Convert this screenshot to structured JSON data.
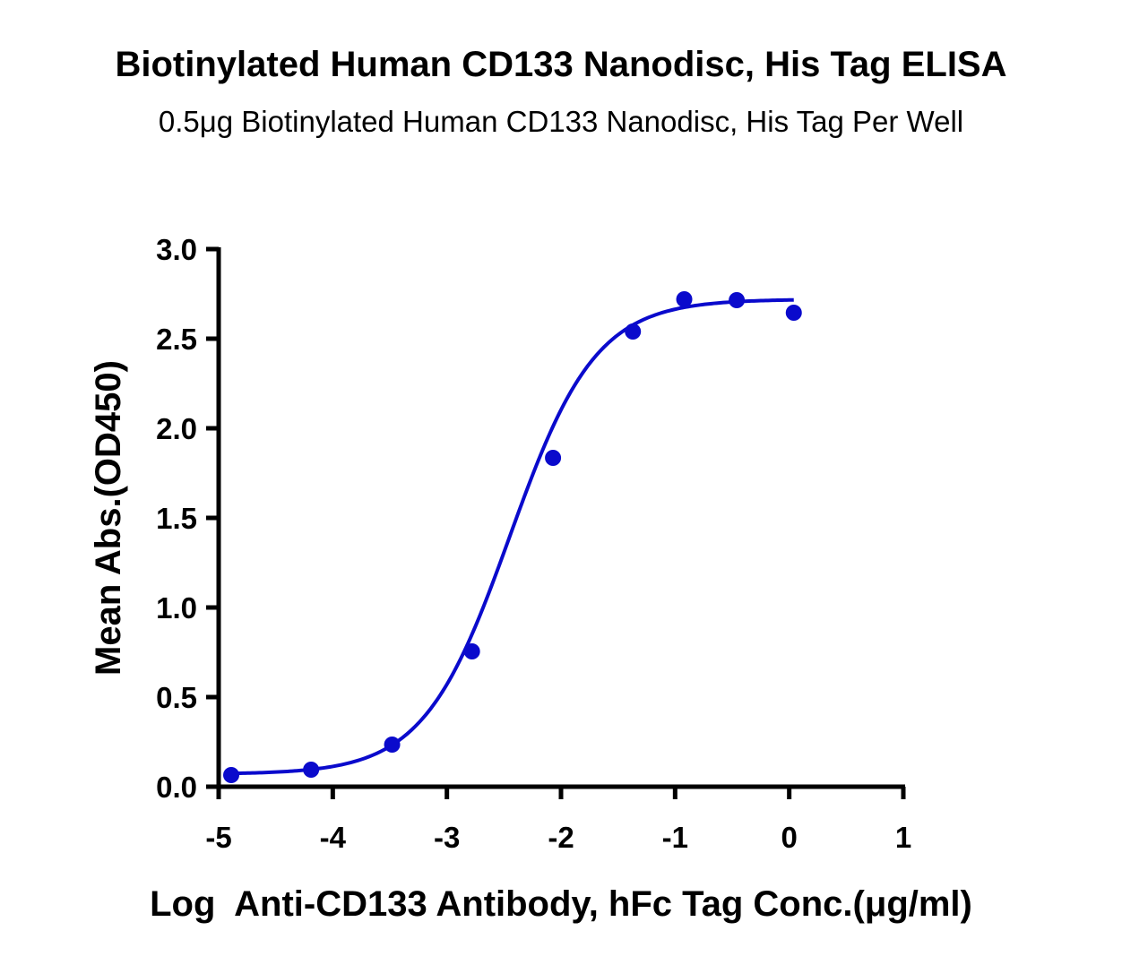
{
  "chart_data": {
    "type": "scatter",
    "title": "Biotinylated Human CD133 Nanodisc, His Tag ELISA",
    "subtitle": "0.5μg Biotinylated Human CD133 Nanodisc, His Tag Per Well",
    "xlabel": "Log  Anti-CD133 Antibody, hFc Tag Conc.(μg/ml)",
    "ylabel": "Mean Abs.(OD450)",
    "xlim": [
      -5,
      1
    ],
    "ylim": [
      0,
      3.0
    ],
    "xticks": [
      "-5",
      "-4",
      "-3",
      "-2",
      "-1",
      "0",
      "1"
    ],
    "yticks": [
      "0.0",
      "0.5",
      "1.0",
      "1.5",
      "2.0",
      "2.5",
      "3.0"
    ],
    "grid": false,
    "color": "#0a0acc",
    "series": [
      {
        "x": [
          -4.89,
          -4.19,
          -3.48,
          -2.78,
          -2.07,
          -1.37,
          -0.92,
          -0.46,
          0.04
        ],
        "y": [
          0.065,
          0.095,
          0.235,
          0.755,
          1.835,
          2.54,
          2.72,
          2.715,
          2.645
        ]
      }
    ],
    "fit": {
      "model": "4PL",
      "bottom": 0.07,
      "top": 2.72,
      "logEC50": -2.45,
      "hill": 1.15,
      "x_range": [
        -4.89,
        0.04
      ]
    }
  }
}
